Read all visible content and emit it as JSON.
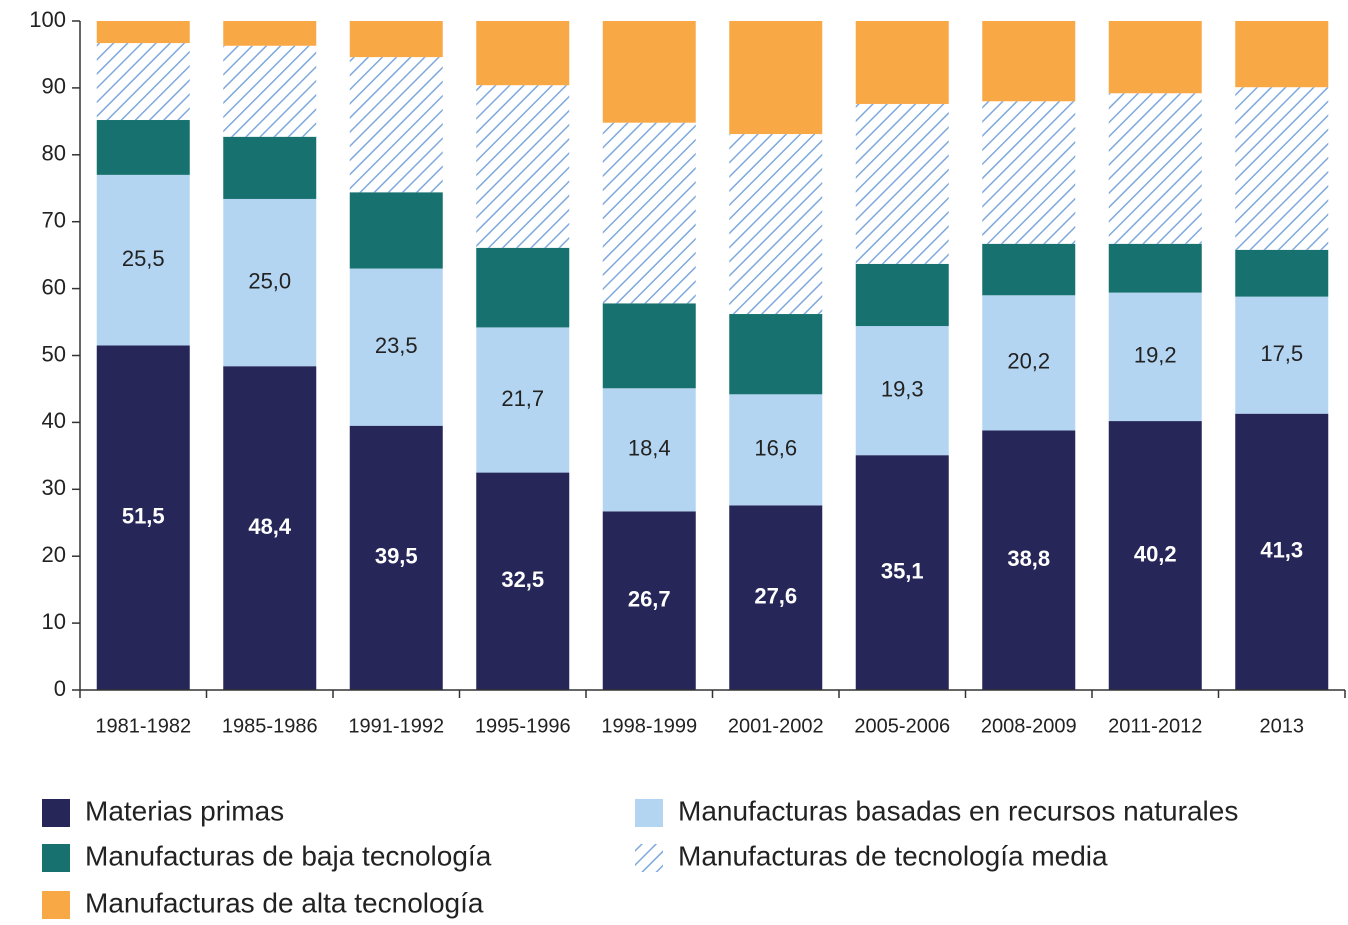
{
  "chart_data": {
    "type": "stacked_bar",
    "categories": [
      "1981-1982",
      "1985-1986",
      "1991-1992",
      "1995-1996",
      "1998-1999",
      "2001-2002",
      "2005-2006",
      "2008-2009",
      "2011-2012",
      "2013"
    ],
    "series": [
      {
        "name": "Materias primas",
        "color": "#262659",
        "values": [
          51.5,
          48.4,
          39.5,
          32.5,
          26.7,
          27.6,
          35.1,
          38.8,
          40.2,
          41.3
        ],
        "value_labels": [
          "51,5",
          "48,4",
          "39,5",
          "32,5",
          "26,7",
          "27,6",
          "35,1",
          "38,8",
          "40,2",
          "41,3"
        ]
      },
      {
        "name": "Manufacturas basadas en recursos naturales",
        "color": "#b3d5f2",
        "values": [
          25.5,
          25.0,
          23.5,
          21.7,
          18.4,
          16.6,
          19.3,
          20.2,
          19.2,
          17.5
        ],
        "value_labels": [
          "25,5",
          "25,0",
          "23,5",
          "21,7",
          "18,4",
          "16,6",
          "19,3",
          "20,2",
          "19,2",
          "17,5"
        ]
      },
      {
        "name": "Manufacturas de baja tecnología",
        "color": "#17726f",
        "values": [
          8.2,
          9.3,
          11.4,
          11.9,
          12.7,
          12.0,
          9.3,
          7.7,
          7.3,
          7.0
        ]
      },
      {
        "name": "Manufacturas de tecnología media",
        "color": "#7fa9dc",
        "pattern": "hatch",
        "values": [
          11.5,
          13.6,
          20.2,
          24.3,
          27.0,
          26.9,
          23.9,
          21.3,
          22.5,
          24.3
        ]
      },
      {
        "name": "Manufacturas de alta tecnología",
        "color": "#f9a846",
        "values": [
          3.3,
          3.7,
          5.4,
          9.6,
          15.2,
          16.9,
          12.4,
          12.0,
          10.8,
          9.9
        ]
      }
    ],
    "ylim": [
      0,
      100
    ],
    "yticks": [
      0,
      10,
      20,
      30,
      40,
      50,
      60,
      70,
      80,
      90,
      100
    ]
  }
}
